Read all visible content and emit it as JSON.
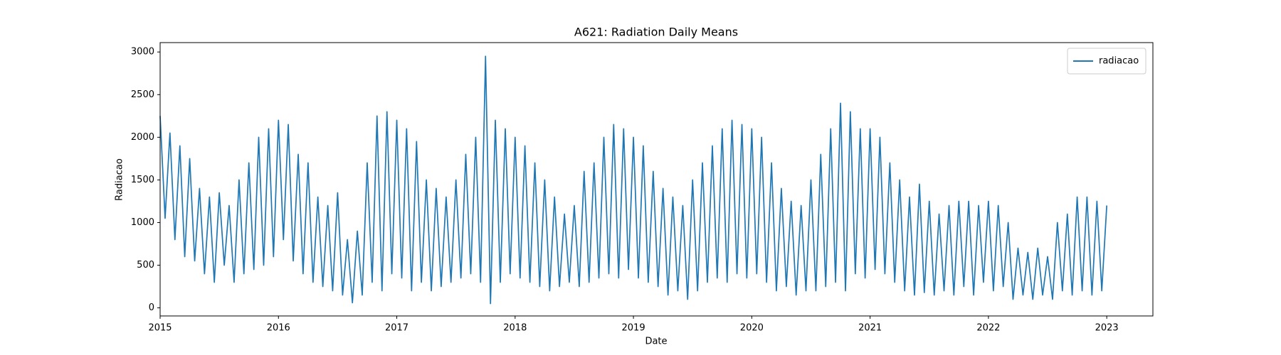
{
  "chart_data": {
    "type": "line",
    "title": "A621: Radiation Daily Means",
    "x_label": "Date",
    "y_label": "Radiacao",
    "xlim": [
      2015,
      2023.39
    ],
    "xticks": [
      2015,
      2016,
      2017,
      2018,
      2019,
      2020,
      2021,
      2022,
      2023
    ],
    "ylim": [
      -95,
      3110
    ],
    "yticks": [
      0,
      500,
      1000,
      1500,
      2000,
      2500,
      3000
    ],
    "legend": "upper right",
    "x": [
      2015.0,
      2015.042,
      2015.083,
      2015.125,
      2015.167,
      2015.208,
      2015.25,
      2015.292,
      2015.333,
      2015.375,
      2015.417,
      2015.458,
      2015.5,
      2015.542,
      2015.583,
      2015.625,
      2015.667,
      2015.708,
      2015.75,
      2015.792,
      2015.833,
      2015.875,
      2015.917,
      2015.958,
      2016.0,
      2016.042,
      2016.083,
      2016.125,
      2016.167,
      2016.208,
      2016.25,
      2016.292,
      2016.333,
      2016.375,
      2016.417,
      2016.458,
      2016.5,
      2016.542,
      2016.583,
      2016.625,
      2016.667,
      2016.708,
      2016.75,
      2016.792,
      2016.833,
      2016.875,
      2016.917,
      2016.958,
      2017.0,
      2017.042,
      2017.083,
      2017.125,
      2017.167,
      2017.208,
      2017.25,
      2017.292,
      2017.333,
      2017.375,
      2017.417,
      2017.458,
      2017.5,
      2017.542,
      2017.583,
      2017.625,
      2017.667,
      2017.708,
      2017.75,
      2017.792,
      2017.833,
      2017.875,
      2017.917,
      2017.958,
      2018.0,
      2018.042,
      2018.083,
      2018.125,
      2018.167,
      2018.208,
      2018.25,
      2018.292,
      2018.333,
      2018.375,
      2018.417,
      2018.458,
      2018.5,
      2018.542,
      2018.583,
      2018.625,
      2018.667,
      2018.708,
      2018.75,
      2018.792,
      2018.833,
      2018.875,
      2018.917,
      2018.958,
      2019.0,
      2019.042,
      2019.083,
      2019.125,
      2019.167,
      2019.208,
      2019.25,
      2019.292,
      2019.333,
      2019.375,
      2019.417,
      2019.458,
      2019.5,
      2019.542,
      2019.583,
      2019.625,
      2019.667,
      2019.708,
      2019.75,
      2019.792,
      2019.833,
      2019.875,
      2019.917,
      2019.958,
      2020.0,
      2020.042,
      2020.083,
      2020.125,
      2020.167,
      2020.208,
      2020.25,
      2020.292,
      2020.333,
      2020.375,
      2020.417,
      2020.458,
      2020.5,
      2020.542,
      2020.583,
      2020.625,
      2020.667,
      2020.708,
      2020.75,
      2020.792,
      2020.833,
      2020.875,
      2020.917,
      2020.958,
      2021.0,
      2021.042,
      2021.083,
      2021.125,
      2021.167,
      2021.208,
      2021.25,
      2021.292,
      2021.333,
      2021.375,
      2021.417,
      2021.458,
      2021.5,
      2021.542,
      2021.583,
      2021.625,
      2021.667,
      2021.708,
      2021.75,
      2021.792,
      2021.833,
      2021.875,
      2021.917,
      2021.958,
      2022.0,
      2022.042,
      2022.083,
      2022.125,
      2022.167,
      2022.208,
      2022.25,
      2022.292,
      2022.333,
      2022.375,
      2022.417,
      2022.458,
      2022.5,
      2022.542,
      2022.583,
      2022.625,
      2022.667,
      2022.708,
      2022.75,
      2022.792,
      2022.833,
      2022.875,
      2022.917,
      2022.958,
      2023.0
    ],
    "series": [
      {
        "name": "radiacao",
        "color": "#1f77b4",
        "values": [
          2250,
          1050,
          2050,
          800,
          1900,
          600,
          1750,
          550,
          1400,
          400,
          1300,
          300,
          1350,
          500,
          1200,
          300,
          1500,
          400,
          1700,
          450,
          2000,
          500,
          2100,
          600,
          2200,
          800,
          2150,
          550,
          1800,
          400,
          1700,
          300,
          1300,
          250,
          1200,
          200,
          1350,
          150,
          800,
          60,
          900,
          150,
          1700,
          300,
          2250,
          200,
          2300,
          400,
          2200,
          350,
          2100,
          200,
          1950,
          300,
          1500,
          200,
          1400,
          250,
          1300,
          300,
          1500,
          350,
          1800,
          400,
          2000,
          300,
          2950,
          50,
          2200,
          300,
          2100,
          400,
          2000,
          350,
          1900,
          300,
          1700,
          250,
          1500,
          200,
          1300,
          250,
          1100,
          300,
          1200,
          250,
          1600,
          300,
          1700,
          350,
          2000,
          400,
          2150,
          350,
          2100,
          450,
          2000,
          350,
          1900,
          300,
          1600,
          250,
          1400,
          150,
          1300,
          200,
          1200,
          100,
          1500,
          200,
          1700,
          300,
          1900,
          350,
          2100,
          300,
          2200,
          400,
          2150,
          350,
          2100,
          400,
          2000,
          300,
          1700,
          200,
          1400,
          250,
          1250,
          150,
          1200,
          200,
          1500,
          200,
          1800,
          250,
          2100,
          300,
          2400,
          200,
          2300,
          400,
          2100,
          350,
          2100,
          450,
          2000,
          400,
          1700,
          300,
          1500,
          200,
          1300,
          150,
          1450,
          180,
          1250,
          150,
          1100,
          200,
          1200,
          150,
          1250,
          250,
          1250,
          150,
          1200,
          300,
          1250,
          200,
          1200,
          250,
          1000,
          100,
          700,
          150,
          650,
          100,
          700,
          150,
          600,
          100,
          1000,
          200,
          1100,
          150,
          1300,
          200,
          1300,
          150,
          1250,
          200,
          1200
        ]
      }
    ]
  }
}
